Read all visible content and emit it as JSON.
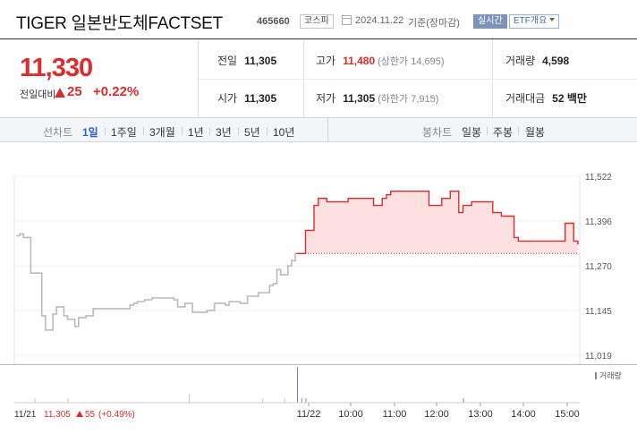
{
  "header": {
    "title": "TIGER 일본반도체FACTSET",
    "code": "465660",
    "market_badge": "코스피",
    "asof_date": "2024.11.22",
    "asof_suffix": "기준(장마감)",
    "live_badge": "실시간",
    "etf_badge": "ETF개요"
  },
  "price": {
    "current": "11,330",
    "change_label": "전일대비",
    "change": "25",
    "change_pct": "+0.22%",
    "direction": "up",
    "up_color": "#e02b2b"
  },
  "stats": {
    "prev_close_label": "전일",
    "prev_close": "11,305",
    "high_label": "고가",
    "high": "11,480",
    "upper_limit": "(상한가 14,695)",
    "volume_label": "거래량",
    "volume": "4,598",
    "open_label": "시가",
    "open": "11,305",
    "low_label": "저가",
    "low": "11,305",
    "lower_limit": "(하한가 7,915)",
    "trade_value_label": "거래대금",
    "trade_value": "52 백만"
  },
  "tabs": {
    "line_label": "선차트",
    "line_tabs": [
      "1일",
      "1주일",
      "3개월",
      "1년",
      "3년",
      "5년",
      "10년"
    ],
    "active_line_tab": "1일",
    "candle_label": "봉차트",
    "candle_tabs": [
      "일봉",
      "주봉",
      "월봉"
    ]
  },
  "chart_data": {
    "type": "line",
    "y_ticks": [
      "11,522",
      "11,396",
      "11,270",
      "11,145",
      "11,019"
    ],
    "ylim": [
      11019,
      11522
    ],
    "x_ticks": [
      "11/22",
      "10:00",
      "11:00",
      "12:00",
      "13:00",
      "14:00",
      "15:00"
    ],
    "baseline": 11305,
    "volume_label": "거래량",
    "prev_day": {
      "date": "11/21",
      "close": "11,305",
      "change": "55",
      "change_pct": "(+0.49%)",
      "direction": "up",
      "series_color": "#bbbbbb",
      "values": [
        11355,
        11360,
        11350,
        11350,
        11250,
        11250,
        11250,
        11130,
        11090,
        11090,
        11135,
        11155,
        11155,
        11130,
        11120,
        11120,
        11100,
        11125,
        11125,
        11130,
        11130,
        11150,
        11150,
        11150,
        11150,
        11150,
        11150,
        11150,
        11150,
        11150,
        11150,
        11160,
        11165,
        11170,
        11170,
        11175,
        11175,
        11180,
        11180,
        11180,
        11180,
        11180,
        11180,
        11175,
        11155,
        11155,
        11165,
        11165,
        11140,
        11140,
        11140,
        11140,
        11145,
        11145,
        11165,
        11165,
        11165,
        11160,
        11170,
        11170,
        11170,
        11165,
        11165,
        11185,
        11185,
        11185,
        11195,
        11195,
        11195,
        11215,
        11220,
        11260,
        11245,
        11245,
        11270,
        11285,
        11305
      ],
      "volume": [
        0,
        0,
        0,
        0,
        0,
        1,
        0,
        0,
        0,
        0,
        0,
        0,
        0,
        0,
        1,
        0,
        0,
        0,
        0,
        0,
        0,
        0,
        0,
        0,
        0,
        0,
        0,
        0,
        0,
        0,
        0,
        0,
        0,
        0,
        0,
        0,
        0,
        0,
        0,
        0,
        0,
        0,
        0,
        0,
        0,
        0,
        0,
        2,
        0,
        0,
        0,
        0,
        0,
        0,
        0,
        0,
        0,
        0,
        0,
        0,
        0,
        0,
        0,
        0,
        0,
        0,
        0,
        1,
        0,
        0,
        0,
        0,
        0,
        1,
        0,
        0,
        0
      ]
    },
    "today": {
      "date": "11/22",
      "series_color": "#e02b2b",
      "fill_color": "#fde0e0",
      "values": [
        11305,
        11305,
        11370,
        11370,
        11440,
        11460,
        11460,
        11450,
        11450,
        11450,
        11450,
        11450,
        11460,
        11460,
        11460,
        11460,
        11460,
        11460,
        11440,
        11440,
        11460,
        11470,
        11480,
        11480,
        11480,
        11480,
        11480,
        11480,
        11480,
        11480,
        11480,
        11440,
        11440,
        11440,
        11460,
        11460,
        11480,
        11480,
        11420,
        11440,
        11440,
        11450,
        11450,
        11450,
        11450,
        11450,
        11420,
        11420,
        11410,
        11410,
        11410,
        11350,
        11340,
        11340,
        11340,
        11340,
        11340,
        11340,
        11340,
        11340,
        11340,
        11340,
        11340,
        11390,
        11390,
        11340,
        11330
      ],
      "volume": [
        8,
        1,
        1,
        0,
        0,
        0,
        0,
        0,
        0,
        0,
        0,
        0,
        0,
        0,
        0,
        0,
        0,
        0,
        0,
        0,
        0,
        0,
        0,
        0,
        0,
        0,
        0,
        0,
        0,
        0,
        0,
        0,
        0,
        0,
        0,
        0,
        0,
        0,
        0,
        1,
        0,
        0,
        0,
        0,
        0,
        0,
        0,
        0,
        0,
        0,
        0,
        0,
        0,
        0,
        0,
        0,
        0,
        0,
        0,
        0,
        0,
        0,
        0,
        0,
        0,
        0,
        0
      ]
    }
  }
}
